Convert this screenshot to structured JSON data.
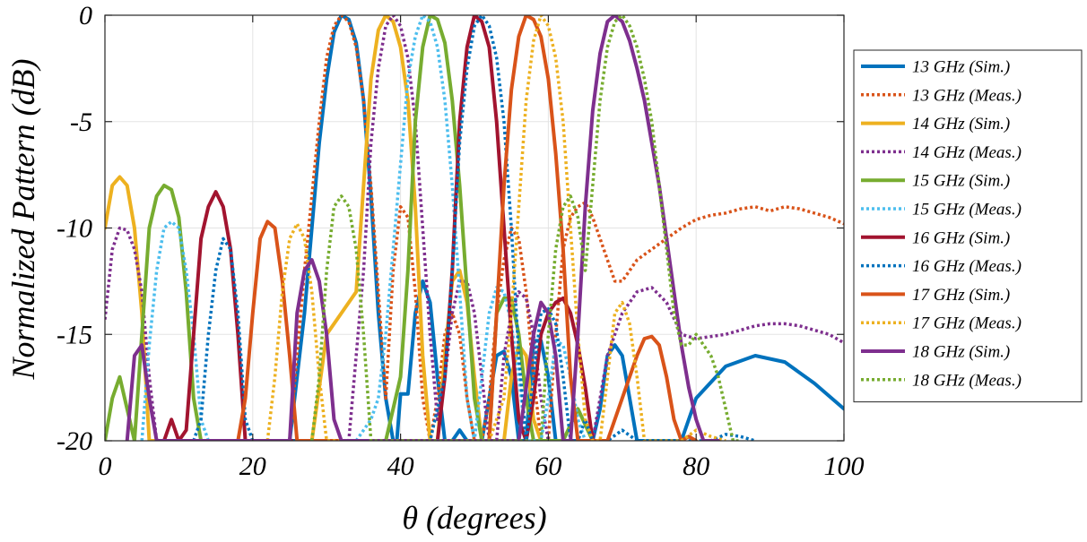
{
  "chart_data": {
    "type": "line",
    "title": "",
    "xlabel": "θ (degrees)",
    "ylabel": "Normalized Pattern (dB)",
    "xlim": [
      0,
      100
    ],
    "ylim": [
      -20,
      0
    ],
    "xticks": [
      0,
      20,
      40,
      60,
      80,
      100
    ],
    "yticks": [
      0,
      -5,
      -10,
      -15,
      -20
    ],
    "xtick_labels": [
      "0",
      "20",
      "40",
      "60",
      "80",
      "100"
    ],
    "ytick_labels": [
      "0",
      "-5",
      "-10",
      "-15",
      "-20"
    ],
    "grid": true,
    "legend_position": "right",
    "series": [
      {
        "name": "13 GHz (Sim.)",
        "color": "#0072BD",
        "style": "solid",
        "x": [
          25,
          27,
          29,
          30,
          31,
          32,
          33,
          34,
          35,
          36,
          37,
          38,
          39,
          39.5,
          40,
          41,
          42,
          43,
          44,
          45,
          46,
          47,
          48,
          49,
          50,
          51,
          52,
          53,
          54,
          55,
          56,
          57,
          58,
          59,
          60,
          61,
          62,
          63,
          64,
          65,
          66,
          67,
          68,
          69,
          70,
          71,
          72,
          73,
          74,
          75,
          76,
          77,
          78,
          80,
          84,
          88,
          92,
          96,
          100
        ],
        "y": [
          -20,
          -14,
          -6,
          -3,
          -0.8,
          0,
          -0.2,
          -1.3,
          -4,
          -8.5,
          -14,
          -18,
          -20,
          -20,
          -17.8,
          -17.8,
          -14,
          -12.5,
          -13.5,
          -17,
          -20,
          -20,
          -19.5,
          -20,
          -20,
          -20,
          -18,
          -16,
          -15.8,
          -17,
          -20,
          -20,
          -15.3,
          -15.3,
          -17,
          -20,
          -20,
          -20,
          -20,
          -20,
          -20,
          -18.5,
          -16,
          -15.5,
          -16,
          -18,
          -20,
          -20,
          -20,
          -20,
          -20,
          -20,
          -20,
          -18,
          -16.5,
          -16,
          -16.3,
          -17.3,
          -18.5
        ]
      },
      {
        "name": "13 GHz (Meas.)",
        "color": "#D95319",
        "style": "dotted",
        "x": [
          25,
          27,
          29,
          30,
          31,
          32,
          33,
          34,
          35,
          36,
          37,
          38,
          39,
          40,
          41,
          42,
          43,
          44,
          45,
          46,
          47,
          48,
          49,
          50,
          51,
          52,
          53,
          54,
          55,
          56,
          57,
          58,
          59,
          60,
          61,
          62,
          63,
          64,
          65,
          66,
          67,
          68,
          69,
          70,
          71,
          72,
          74,
          76,
          78,
          80,
          82,
          84,
          86,
          88,
          90,
          92,
          94,
          96,
          98,
          100
        ],
        "y": [
          -20,
          -12,
          -5,
          -2,
          -0.5,
          0,
          -0.3,
          -1.5,
          -4,
          -8,
          -13,
          -18,
          -12,
          -9,
          -9.5,
          -13,
          -18,
          -20,
          -18,
          -15,
          -14,
          -15,
          -18,
          -20,
          -20,
          -18,
          -14,
          -11.5,
          -10,
          -10.5,
          -13,
          -17,
          -20,
          -20,
          -15,
          -11,
          -9.5,
          -9,
          -8.8,
          -9.5,
          -10.5,
          -11.5,
          -12.5,
          -12.5,
          -12,
          -11.5,
          -11,
          -10.5,
          -10,
          -9.6,
          -9.4,
          -9.3,
          -9.1,
          -9.0,
          -9.2,
          -9.0,
          -9.1,
          -9.3,
          -9.5,
          -9.8
        ]
      },
      {
        "name": "14 GHz (Sim.)",
        "color": "#EDB120",
        "style": "solid",
        "x": [
          0,
          1,
          2,
          3,
          4,
          5,
          6,
          7,
          28,
          30,
          32,
          34,
          35,
          36,
          37,
          38,
          39,
          40,
          41,
          42,
          43,
          44,
          45,
          46,
          47,
          48,
          49,
          50,
          51,
          52,
          53,
          54,
          55,
          56,
          57,
          58,
          59
        ],
        "y": [
          -10,
          -8,
          -7.6,
          -8,
          -10,
          -14,
          -20,
          -20,
          -20,
          -15,
          -14,
          -13,
          -8,
          -3,
          -0.7,
          0,
          -0.3,
          -1.5,
          -4,
          -9,
          -16,
          -20,
          -20,
          -16,
          -12.5,
          -12,
          -13.5,
          -17,
          -20,
          -20,
          -20,
          -20,
          -17,
          -15.5,
          -16,
          -19,
          -20
        ]
      },
      {
        "name": "14 GHz (Meas.)",
        "color": "#7E2F8E",
        "style": "dotted",
        "x": [
          0,
          1,
          2,
          3,
          4,
          5,
          6,
          7,
          8,
          33,
          35,
          36,
          37,
          38,
          39,
          40,
          41,
          42,
          43,
          44,
          45,
          46,
          47,
          48,
          49,
          50,
          51,
          52,
          53,
          54,
          55,
          56,
          57,
          58,
          59,
          60,
          62,
          64,
          66,
          68,
          70,
          72,
          74,
          76,
          78,
          80,
          82,
          84,
          86,
          88,
          90,
          92,
          94,
          96,
          98,
          100
        ],
        "y": [
          -14.3,
          -11,
          -10,
          -10.1,
          -11,
          -13,
          -17,
          -20,
          -20,
          -20,
          -12,
          -6,
          -2.5,
          -0.5,
          0,
          -0.5,
          -2,
          -5,
          -10,
          -15,
          -19,
          -17,
          -14,
          -12.5,
          -12.5,
          -14,
          -17,
          -20,
          -20,
          -16,
          -14,
          -13,
          -13.3,
          -15,
          -18,
          -20,
          -20,
          -20,
          -20,
          -16,
          -14,
          -13,
          -12.8,
          -13.5,
          -15,
          -15.2,
          -15.1,
          -15,
          -14.8,
          -14.6,
          -14.5,
          -14.5,
          -14.6,
          -14.8,
          -15,
          -15.4
        ]
      },
      {
        "name": "15 GHz (Sim.)",
        "color": "#77AC30",
        "style": "solid",
        "x": [
          0,
          1,
          2,
          3,
          4,
          5,
          6,
          7,
          8,
          9,
          10,
          11,
          12,
          13,
          38,
          40,
          41,
          42,
          43,
          44,
          45,
          46,
          47,
          48,
          49,
          50,
          51,
          52,
          53,
          54,
          55,
          56,
          57,
          58,
          59,
          60,
          62,
          64,
          66
        ],
        "y": [
          -20,
          -18,
          -17,
          -18.5,
          -20,
          -15,
          -10,
          -8.5,
          -8,
          -8.2,
          -9.5,
          -13,
          -18,
          -20,
          -20,
          -17,
          -12,
          -5,
          -1.5,
          0,
          -0.2,
          -1.3,
          -4,
          -8,
          -13,
          -18,
          -20,
          -20,
          -14,
          -13.3,
          -13.3,
          -15,
          -18,
          -20,
          -20,
          -20,
          -20,
          -18.5,
          -20
        ]
      },
      {
        "name": "15 GHz (Meas.)",
        "color": "#4DBEEE",
        "style": "dotted",
        "x": [
          5,
          6,
          7,
          8,
          9,
          10,
          11,
          12,
          13,
          14,
          34,
          36,
          37,
          38,
          39,
          40,
          41,
          42,
          43,
          44,
          45,
          46,
          47,
          48,
          49,
          50,
          51,
          52,
          53,
          54,
          55,
          56,
          57,
          58,
          59,
          60,
          61,
          62,
          63,
          64,
          65
        ],
        "y": [
          -20,
          -15.5,
          -12,
          -10,
          -9.7,
          -10,
          -12,
          -15,
          -19,
          -20,
          -20,
          -19,
          -18,
          -15,
          -11,
          -7,
          -3,
          -1,
          0,
          -0.3,
          -1.5,
          -4,
          -8,
          -13,
          -18,
          -20,
          -17,
          -14,
          -12.8,
          -13,
          -14.5,
          -17,
          -20,
          -20,
          -20,
          -18,
          -15.3,
          -15.5,
          -17,
          -19,
          -20
        ]
      },
      {
        "name": "16 GHz (Sim.)",
        "color": "#A2142F",
        "style": "solid",
        "x": [
          8,
          9,
          10,
          11,
          12,
          13,
          14,
          15,
          16,
          17,
          18,
          19,
          20,
          45,
          46,
          47,
          48,
          49,
          50,
          51,
          52,
          53,
          54,
          55,
          56,
          57,
          58,
          59,
          60,
          61,
          62,
          63,
          64,
          65,
          66,
          67,
          68
        ],
        "y": [
          -20,
          -19,
          -20,
          -19.5,
          -15,
          -10.5,
          -9,
          -8.3,
          -9,
          -11,
          -15,
          -20,
          -20,
          -20,
          -17,
          -12,
          -5,
          -1.5,
          0,
          -0.3,
          -1.5,
          -5,
          -10,
          -15,
          -19,
          -20,
          -18,
          -15,
          -14,
          -13.5,
          -13.3,
          -14,
          -15.5,
          -17.5,
          -20,
          -20,
          -20
        ]
      },
      {
        "name": "16 GHz (Meas.)",
        "color": "#0072BD",
        "style": "dotted",
        "x": [
          12,
          13,
          14,
          15,
          16,
          17,
          18,
          19,
          20,
          42,
          44,
          46,
          47,
          48,
          49,
          50,
          51,
          52,
          53,
          54,
          55,
          56,
          57,
          58,
          59,
          60,
          61,
          62,
          63,
          64,
          65,
          66,
          68,
          70,
          72,
          74,
          76,
          78,
          80,
          82,
          84,
          86,
          88
        ],
        "y": [
          -20,
          -19,
          -15,
          -12,
          -10.5,
          -11,
          -14,
          -19,
          -20,
          -20,
          -20,
          -17,
          -12,
          -6,
          -2.5,
          -0.5,
          0,
          -0.5,
          -2,
          -5,
          -10,
          -16,
          -20,
          -17,
          -14,
          -13.8,
          -14.5,
          -17,
          -20,
          -20,
          -19,
          -20,
          -20,
          -19.5,
          -20,
          -20,
          -20,
          -20,
          -20,
          -20,
          -19.7,
          -19.8,
          -20
        ]
      },
      {
        "name": "17 GHz (Sim.)",
        "color": "#D95319",
        "style": "solid",
        "x": [
          18,
          19,
          20,
          21,
          22,
          23,
          24,
          25,
          26,
          27,
          48,
          50,
          52,
          53,
          54,
          55,
          56,
          57,
          58,
          59,
          60,
          61,
          62,
          63,
          64,
          65,
          66,
          67,
          68,
          69,
          70,
          71,
          72,
          73,
          74,
          75,
          76,
          77,
          78,
          79,
          80
        ],
        "y": [
          -20,
          -18,
          -14,
          -10.5,
          -9.7,
          -10,
          -12.5,
          -16,
          -20,
          -20,
          -20,
          -20,
          -20,
          -14,
          -8,
          -3.5,
          -1,
          0,
          -0.2,
          -1,
          -3,
          -6.5,
          -11,
          -17,
          -20,
          -20,
          -20,
          -20,
          -20,
          -19,
          -18,
          -17,
          -16,
          -15.2,
          -15.1,
          -15.5,
          -17,
          -19,
          -20,
          -19.8,
          -20
        ]
      },
      {
        "name": "17 GHz (Meas.)",
        "color": "#EDB120",
        "style": "dotted",
        "x": [
          22,
          23,
          24,
          25,
          26,
          27,
          28,
          29,
          30,
          52,
          54,
          55,
          56,
          57,
          58,
          59,
          60,
          61,
          62,
          63,
          64,
          65,
          66,
          67,
          68,
          69,
          70,
          71,
          72,
          73,
          74,
          75,
          76,
          78,
          80,
          82,
          84
        ],
        "y": [
          -20,
          -17,
          -13,
          -10.5,
          -9.8,
          -10.5,
          -13,
          -17,
          -20,
          -20,
          -18,
          -14,
          -9,
          -4,
          -1.2,
          0,
          -0.5,
          -2,
          -5,
          -10,
          -15,
          -19,
          -20,
          -20,
          -17,
          -14,
          -13.5,
          -14.5,
          -17,
          -20,
          -20,
          -20,
          -20,
          -20,
          -19.5,
          -19.8,
          -20
        ]
      },
      {
        "name": "18 GHz (Sim.)",
        "color": "#7E2F8E",
        "style": "solid",
        "x": [
          3,
          4,
          5,
          6,
          7,
          8,
          25,
          26,
          27,
          28,
          29,
          30,
          31,
          32,
          56,
          58,
          59,
          60,
          61,
          62,
          63,
          64,
          65,
          66,
          67,
          68,
          69,
          70,
          71,
          72,
          73,
          74,
          75,
          76,
          77,
          78,
          79,
          80,
          81,
          82,
          83
        ],
        "y": [
          -20,
          -16,
          -15.5,
          -18,
          -20,
          -20,
          -20,
          -14,
          -12,
          -11.5,
          -12.5,
          -15,
          -19,
          -20,
          -20,
          -15,
          -13.5,
          -14,
          -16,
          -20,
          -20,
          -15,
          -9,
          -4.5,
          -1.8,
          -0.3,
          0,
          -0.3,
          -1.2,
          -2.5,
          -4,
          -6,
          -8,
          -10.5,
          -13,
          -15.5,
          -17.5,
          -19,
          -20,
          -20,
          -20
        ]
      },
      {
        "name": "18 GHz (Meas.)",
        "color": "#77AC30",
        "style": "dotted",
        "x": [
          28,
          29,
          30,
          31,
          32,
          33,
          34,
          35,
          36,
          59,
          60,
          61,
          62,
          63,
          64,
          65,
          66,
          67,
          68,
          69,
          70,
          71,
          72,
          73,
          74,
          75,
          76,
          77,
          78,
          79,
          80,
          81,
          82,
          83,
          84,
          85,
          86
        ],
        "y": [
          -20,
          -17,
          -12,
          -9,
          -8.5,
          -9,
          -11,
          -15,
          -20,
          -20,
          -15,
          -11,
          -9,
          -8.5,
          -9.5,
          -12,
          -8,
          -4,
          -1.5,
          -0.3,
          0,
          -0.5,
          -1.5,
          -3,
          -5,
          -8,
          -11,
          -14,
          -15.5,
          -15.5,
          -15,
          -15.5,
          -16,
          -17,
          -18.5,
          -20,
          -20
        ]
      }
    ]
  }
}
